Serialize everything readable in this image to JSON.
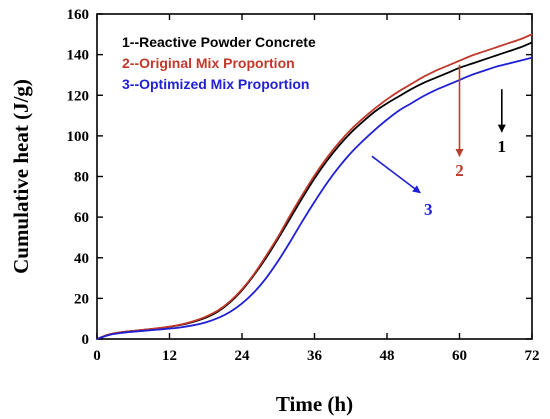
{
  "chart_data": {
    "type": "line",
    "title": "",
    "xlabel": "Time (h)",
    "ylabel": "Cumulative heat (J/g)",
    "xlim": [
      0,
      72
    ],
    "ylim": [
      0,
      160
    ],
    "xticks": [
      0,
      12,
      24,
      36,
      48,
      60,
      72
    ],
    "yticks": [
      0,
      20,
      40,
      60,
      80,
      100,
      120,
      140,
      160
    ],
    "grid": false,
    "legend_position": "top-left",
    "x": [
      0,
      2,
      4,
      6,
      8,
      10,
      12,
      14,
      16,
      18,
      20,
      22,
      24,
      26,
      28,
      30,
      32,
      34,
      36,
      38,
      40,
      42,
      44,
      46,
      48,
      50,
      52,
      54,
      56,
      58,
      60,
      62,
      64,
      66,
      68,
      70,
      72
    ],
    "series": [
      {
        "name": "1--Reactive Powder Concrete",
        "color": "#000000",
        "values": [
          0,
          2.2,
          3.3,
          4.0,
          4.6,
          5.2,
          6.0,
          7.0,
          8.5,
          10.5,
          13.5,
          18.0,
          24.0,
          31.5,
          40.0,
          49.5,
          59.5,
          69.5,
          79.0,
          87.5,
          95.0,
          101.5,
          107.0,
          112.0,
          116.0,
          119.5,
          123.0,
          126.0,
          128.5,
          131.0,
          133.5,
          135.5,
          137.5,
          139.5,
          141.5,
          143.5,
          146.0
        ]
      },
      {
        "name": "2--Original Mix Proportion",
        "color": "#c0392b",
        "values": [
          0,
          2.2,
          3.3,
          4.0,
          4.6,
          5.3,
          6.1,
          7.2,
          8.8,
          11.0,
          14.0,
          18.5,
          24.5,
          32.0,
          41.0,
          50.5,
          61.0,
          71.0,
          80.5,
          89.0,
          96.5,
          103.0,
          108.5,
          113.5,
          118.0,
          122.0,
          125.5,
          129.0,
          132.0,
          134.5,
          137.0,
          139.5,
          141.5,
          143.5,
          145.5,
          147.5,
          150.0
        ]
      },
      {
        "name": "3--Optimized Mix Proportion",
        "color": "#1f1fd6",
        "values": [
          0,
          2.0,
          3.0,
          3.6,
          4.1,
          4.6,
          5.1,
          5.8,
          6.8,
          8.2,
          10.3,
          13.3,
          17.5,
          23.0,
          30.0,
          38.5,
          48.0,
          58.0,
          67.5,
          76.5,
          84.5,
          91.5,
          97.5,
          103.0,
          108.0,
          112.5,
          116.0,
          119.5,
          122.5,
          125.0,
          127.5,
          130.0,
          132.0,
          134.0,
          135.5,
          137.0,
          138.5
        ]
      }
    ],
    "annotations": [
      {
        "label": "1",
        "color": "#000000",
        "from": [
          67,
          123
        ],
        "to": [
          67,
          102
        ]
      },
      {
        "label": "2",
        "color": "#c0392b",
        "from": [
          60,
          135
        ],
        "to": [
          60,
          90
        ]
      },
      {
        "label": "3",
        "color": "#1f1fd6",
        "from": [
          45.5,
          90
        ],
        "to": [
          53.5,
          72
        ]
      }
    ]
  }
}
